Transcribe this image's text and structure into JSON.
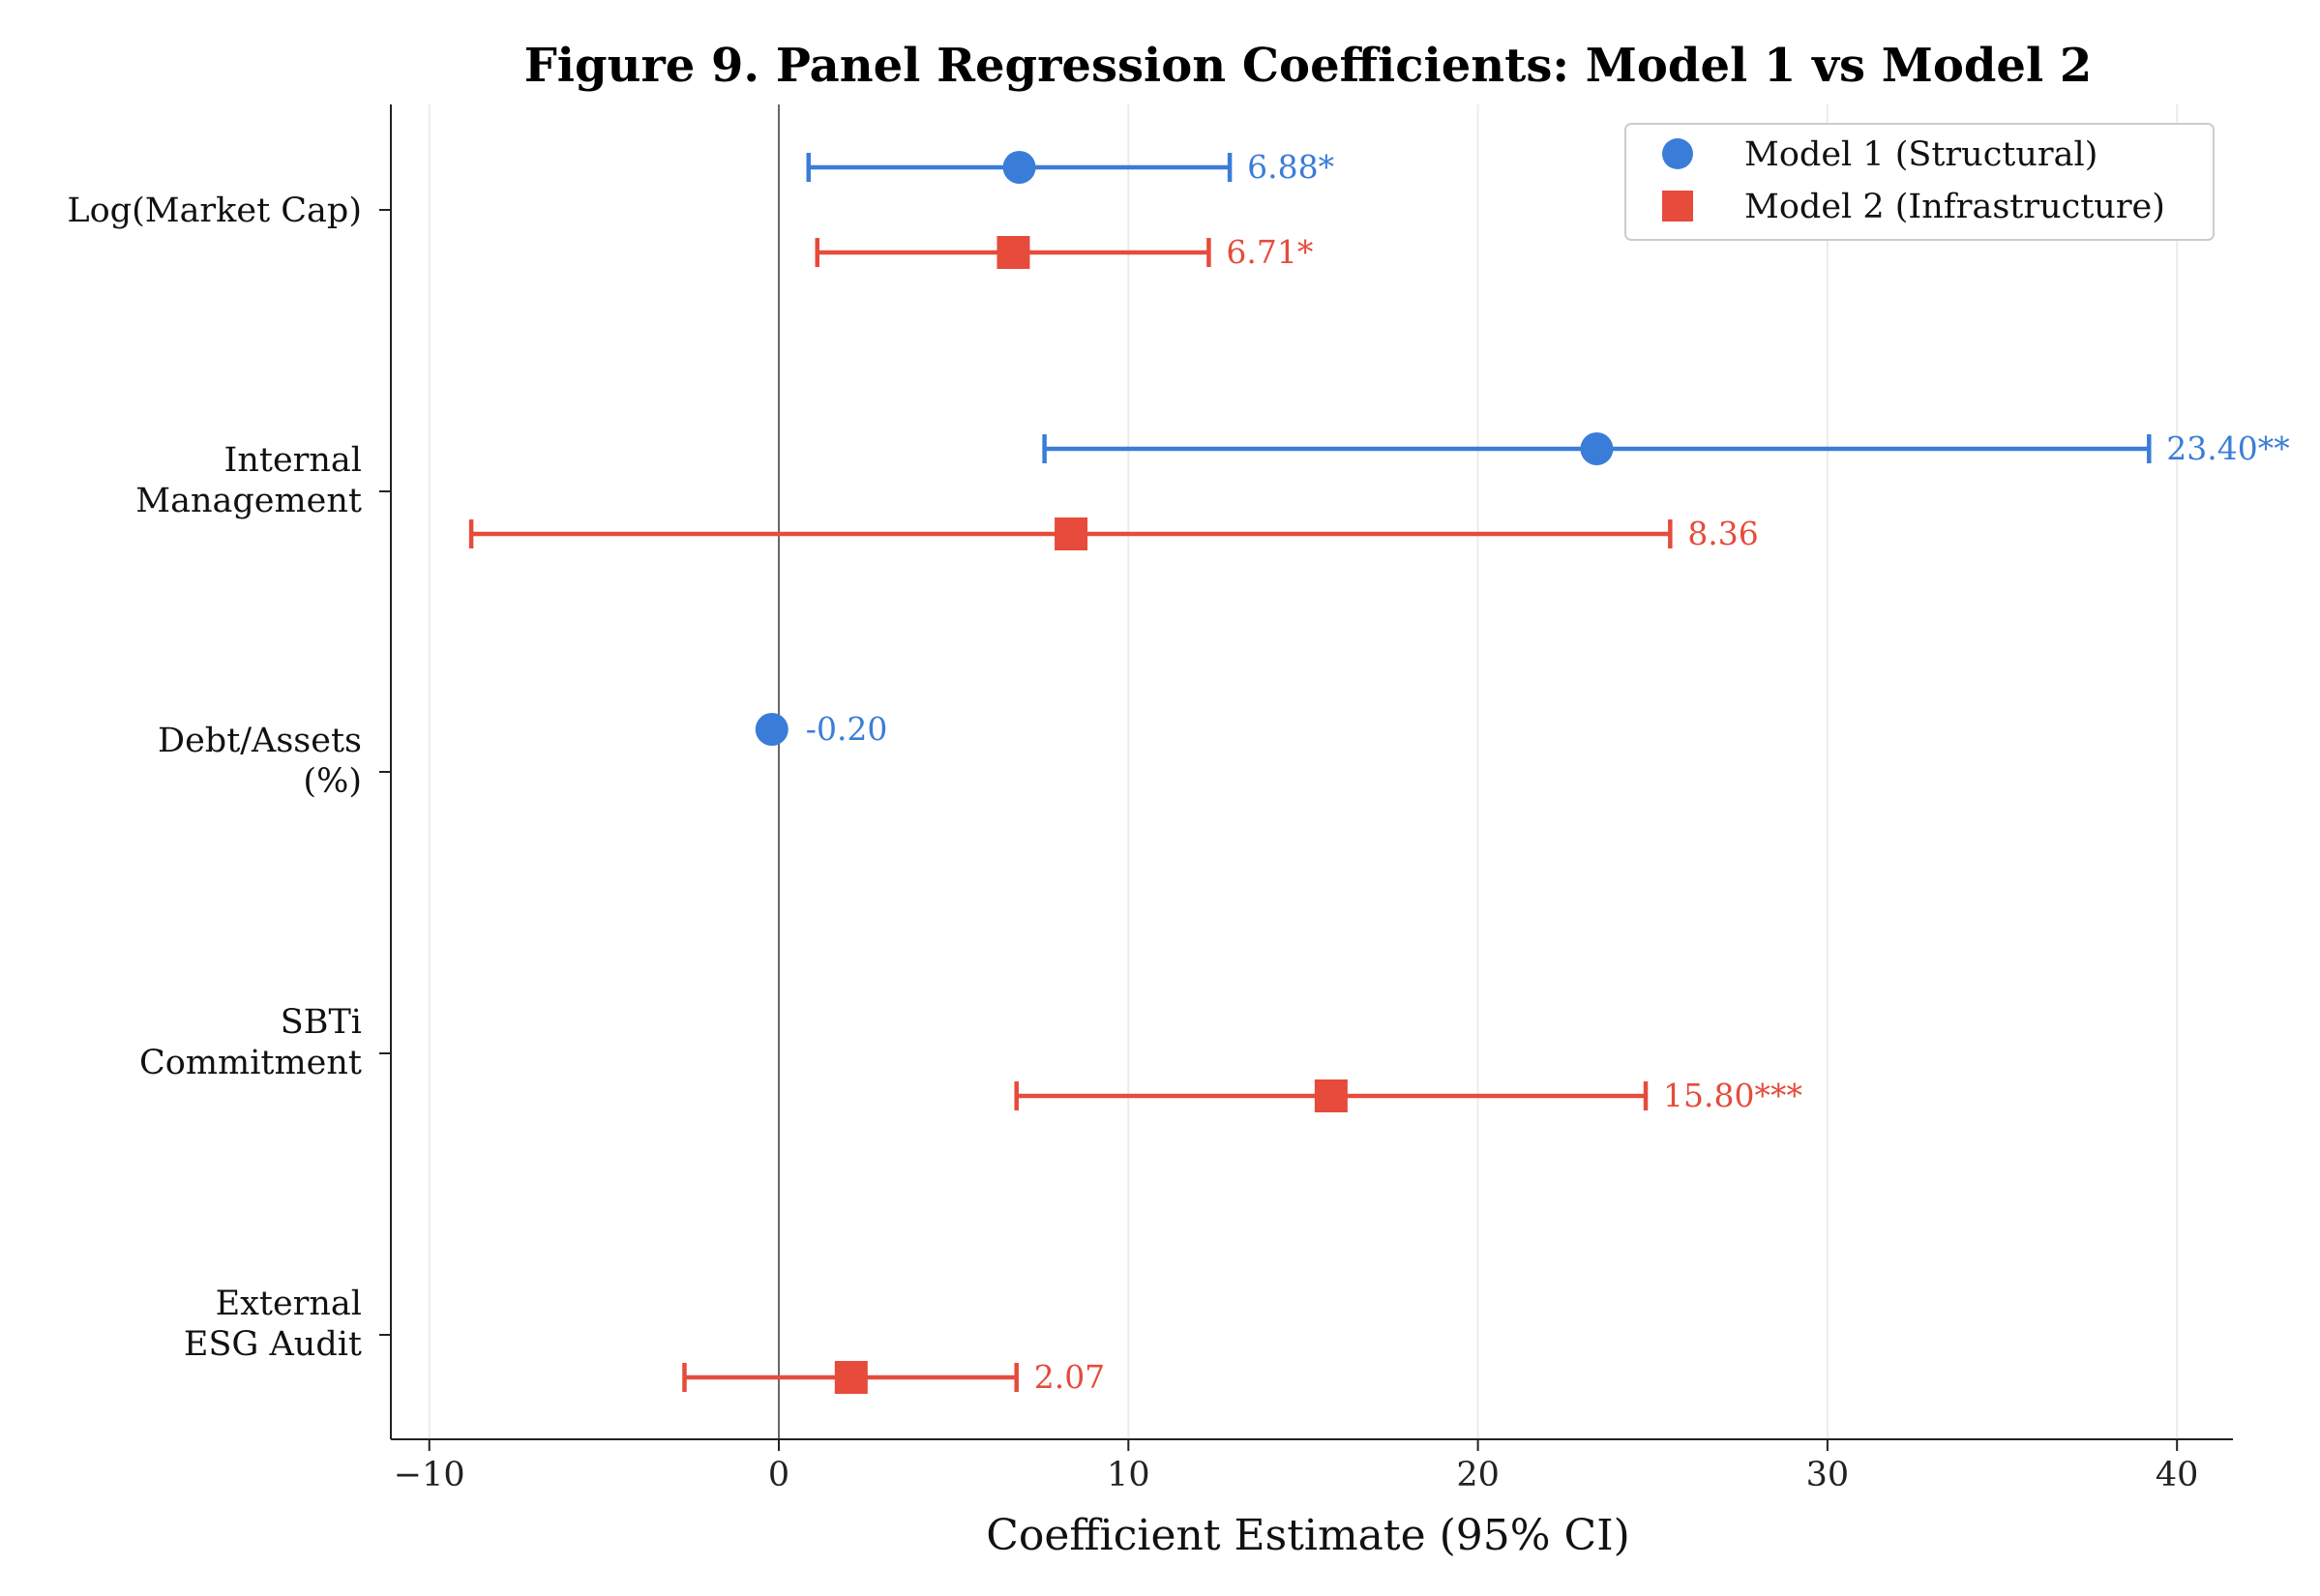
{
  "chart_data": {
    "type": "scatter",
    "title": "Figure 9. Panel Regression Coefficients: Model 1 vs Model 2",
    "xlabel": "Coefficient Estimate (95% CI)",
    "ylabel": "",
    "xlim": [
      -11.1,
      41.6
    ],
    "xticks": [
      -10,
      0,
      10,
      20,
      30,
      40
    ],
    "xtick_labels": [
      "−10",
      "0",
      "10",
      "20",
      "30",
      "40"
    ],
    "grid": "vertical",
    "reference_line": 0,
    "legend_position": "top-right",
    "categories": [
      [
        "Log(Market Cap)"
      ],
      [
        "Internal",
        "Management"
      ],
      [
        "Debt/Assets",
        "(%)"
      ],
      [
        "SBTi",
        "Commitment"
      ],
      [
        "External",
        "ESG Audit"
      ]
    ],
    "series": [
      {
        "name": "Model 1 (Structural)",
        "color": "#3a7dd8",
        "marker": "circle",
        "points": [
          {
            "category": 0,
            "estimate": 6.88,
            "ci": [
              0.85,
              12.9
            ],
            "label": "6.88*"
          },
          {
            "category": 1,
            "estimate": 23.4,
            "ci": [
              7.6,
              39.2
            ],
            "label": "23.40**"
          },
          {
            "category": 2,
            "estimate": -0.2,
            "ci": [
              -0.25,
              -0.15
            ],
            "label": "-0.20"
          }
        ]
      },
      {
        "name": "Model 2 (Infrastructure)",
        "color": "#e64b3b",
        "marker": "square",
        "points": [
          {
            "category": 0,
            "estimate": 6.71,
            "ci": [
              1.1,
              12.3
            ],
            "label": "6.71*"
          },
          {
            "category": 1,
            "estimate": 8.36,
            "ci": [
              -8.8,
              25.5
            ],
            "label": "8.36"
          },
          {
            "category": 3,
            "estimate": 15.8,
            "ci": [
              6.8,
              24.8
            ],
            "label": "15.80***"
          },
          {
            "category": 4,
            "estimate": 2.07,
            "ci": [
              -2.7,
              6.8
            ],
            "label": "2.07"
          }
        ]
      }
    ]
  }
}
